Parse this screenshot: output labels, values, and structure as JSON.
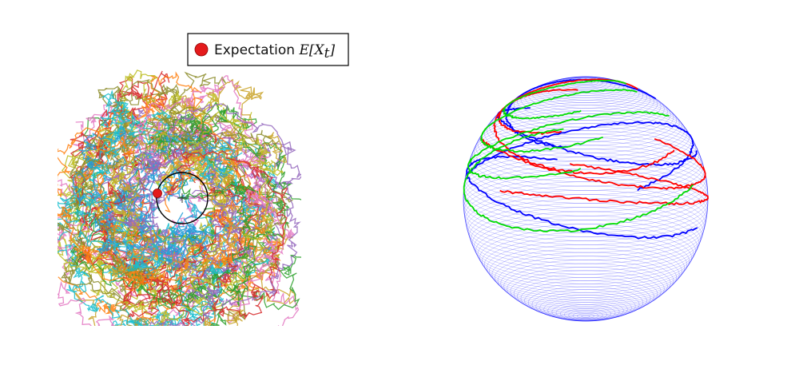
{
  "chart_data": [
    {
      "type": "line",
      "panel": "left",
      "description_free": true,
      "series_count": 60,
      "palette": [
        "#e377c2",
        "#1f9ed8",
        "#2ca02c",
        "#bcbd22",
        "#c9a227",
        "#8c8c2a",
        "#17becf",
        "#d62728",
        "#9467bd",
        "#ff7f0e"
      ],
      "expectation_circle": {
        "radius": 32
      },
      "expectation_point": {
        "x": -31,
        "y": -6
      },
      "center_marker": "+",
      "legend": {
        "placement": "top-right",
        "marker_color": "#e41a1c",
        "label_text": "Expectation ",
        "label_math": "E[X",
        "label_sub": "t",
        "label_close": "]"
      },
      "axes": "off"
    },
    {
      "type": "line",
      "panel": "right",
      "sphere": {
        "wire_color": "#0000ff",
        "latitude_lines": 90,
        "meridian_count": 12
      },
      "series": [
        {
          "color": "#0000ff"
        },
        {
          "color": "#ff0000"
        },
        {
          "color": "#00dd00"
        }
      ],
      "axes": "off"
    }
  ]
}
